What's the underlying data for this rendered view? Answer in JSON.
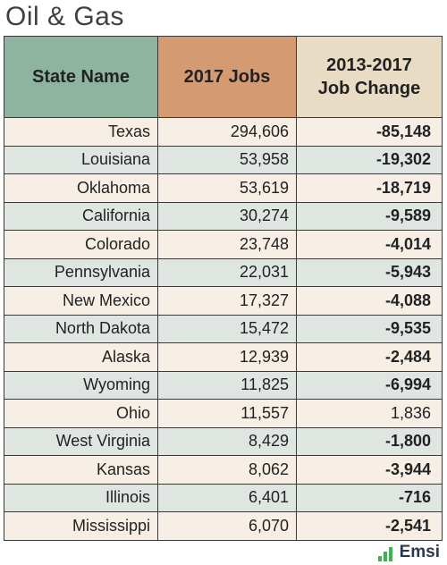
{
  "title": "Oil & Gas",
  "logo": {
    "text": "Emsi",
    "icon": "bar-chart-icon",
    "color": "#3bb54a"
  },
  "chart_data": {
    "type": "table",
    "columns": [
      "State Name",
      "2017 Jobs",
      "2013-2017 Job Change"
    ],
    "rows": [
      {
        "state": "Texas",
        "jobs": "294,606",
        "change": "-85,148"
      },
      {
        "state": "Louisiana",
        "jobs": "53,958",
        "change": "-19,302"
      },
      {
        "state": "Oklahoma",
        "jobs": "53,619",
        "change": "-18,719"
      },
      {
        "state": "California",
        "jobs": "30,274",
        "change": "-9,589"
      },
      {
        "state": "Colorado",
        "jobs": "23,748",
        "change": "-4,014"
      },
      {
        "state": "Pennsylvania",
        "jobs": "22,031",
        "change": "-5,943"
      },
      {
        "state": "New Mexico",
        "jobs": "17,327",
        "change": "-4,088"
      },
      {
        "state": "North Dakota",
        "jobs": "15,472",
        "change": "-9,535"
      },
      {
        "state": "Alaska",
        "jobs": "12,939",
        "change": "-2,484"
      },
      {
        "state": "Wyoming",
        "jobs": "11,825",
        "change": "-6,994"
      },
      {
        "state": "Ohio",
        "jobs": "11,557",
        "change": "1,836"
      },
      {
        "state": "West Virginia",
        "jobs": "8,429",
        "change": "-1,800"
      },
      {
        "state": "Kansas",
        "jobs": "8,062",
        "change": "-3,944"
      },
      {
        "state": "Illinois",
        "jobs": "6,401",
        "change": "-716"
      },
      {
        "state": "Mississippi",
        "jobs": "6,070",
        "change": "-2,541"
      }
    ],
    "header_colors": [
      "#8fb3a1",
      "#d49a72",
      "#e9dcc4"
    ],
    "negative_color": "#e0202a"
  }
}
